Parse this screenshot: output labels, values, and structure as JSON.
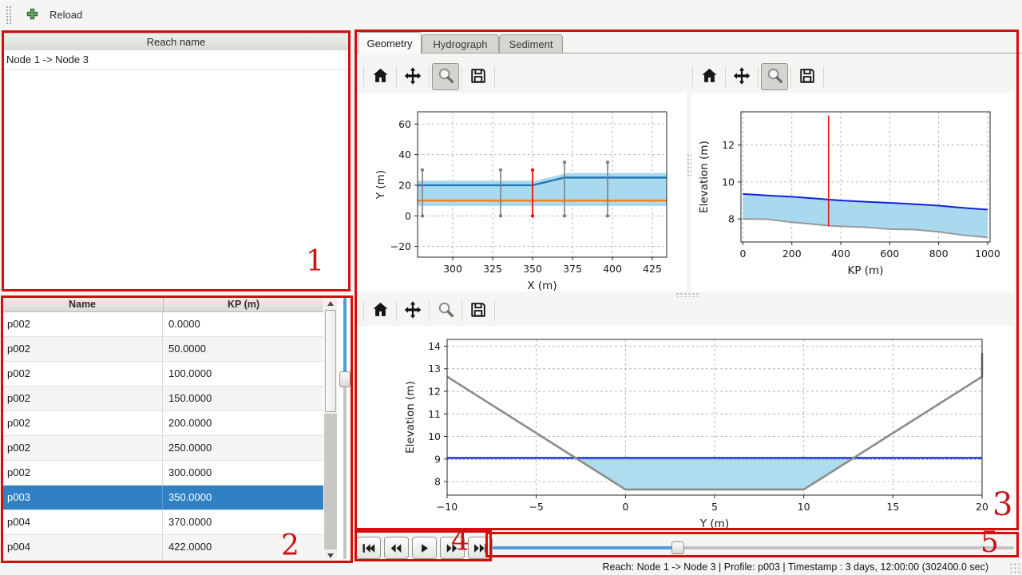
{
  "toolbar": {
    "reload_label": "Reload"
  },
  "reach_panel": {
    "header": "Reach name",
    "items": [
      "Node 1 -> Node 3"
    ]
  },
  "profile_table": {
    "columns": [
      "Name",
      "KP (m)"
    ],
    "rows": [
      {
        "name": "p002",
        "kp": "0.0000"
      },
      {
        "name": "p002",
        "kp": "50.0000"
      },
      {
        "name": "p002",
        "kp": "100.0000"
      },
      {
        "name": "p002",
        "kp": "150.0000"
      },
      {
        "name": "p002",
        "kp": "200.0000"
      },
      {
        "name": "p002",
        "kp": "250.0000"
      },
      {
        "name": "p002",
        "kp": "300.0000"
      },
      {
        "name": "p003",
        "kp": "350.0000"
      },
      {
        "name": "p004",
        "kp": "370.0000"
      },
      {
        "name": "p004",
        "kp": "422.0000"
      },
      {
        "name": "",
        "kp": ""
      }
    ],
    "selected_index": 7
  },
  "tabs": {
    "items": [
      "Geometry",
      "Hydrograph",
      "Sediment"
    ],
    "active": "Geometry"
  },
  "plot_toolbars": {
    "icons": [
      "home-icon",
      "pan-icon",
      "zoom-icon",
      "save-icon"
    ],
    "zoom_active": [
      true,
      true,
      false
    ]
  },
  "playback": {
    "buttons": [
      "skip-start",
      "step-rewind",
      "play",
      "step-forward",
      "skip-end"
    ]
  },
  "time_slider": {
    "progress_percent": 35.5
  },
  "kp_slider": {
    "progress_percent": 31
  },
  "statusbar": {
    "text": "Reach: Node 1 -> Node 3 | Profile: p003 | Timestamp : 3 days, 12:00:00 (302400.0 sec)"
  },
  "annotations": {
    "labels": [
      "1",
      "2",
      "3",
      "4",
      "5"
    ],
    "color": "#c81414"
  },
  "colors": {
    "selection_blue": "#3081c3",
    "slider_blue": "#4a9ede",
    "slider_gray": "#c6c4c1",
    "fill_lightblue": "#a8d9ef",
    "mpl_blue": "#1f77b4",
    "mpl_orange": "#ff7f0e",
    "water_blue": "#1522e0",
    "bed_gray": "#8c8c8c",
    "marker_red": "#e8100c"
  },
  "chart_data": [
    {
      "type": "line",
      "title": "",
      "xlabel": "X (m)",
      "ylabel": "Y (m)",
      "xlim": [
        278,
        434
      ],
      "ylim": [
        -27,
        68
      ],
      "xticks": [
        300,
        325,
        350,
        375,
        400,
        425
      ],
      "yticks": [
        -20,
        0,
        20,
        40,
        60
      ],
      "grid": true,
      "series": [
        {
          "name": "channel-band",
          "type": "band",
          "color": "#a8d9ef",
          "x": [
            278,
            352,
            372,
            434
          ],
          "upper": [
            23,
            23,
            28,
            28
          ],
          "lower": [
            6.5,
            6.5,
            6.5,
            6.5
          ]
        },
        {
          "name": "left-bank-line",
          "type": "line",
          "color": "#1f77b4",
          "width": 2.4,
          "x": [
            278,
            350,
            370,
            434
          ],
          "y": [
            20,
            20,
            25,
            25
          ]
        },
        {
          "name": "right-bank-line",
          "type": "line",
          "color": "#ff7f0e",
          "width": 2.4,
          "x": [
            278,
            434
          ],
          "y": [
            10,
            10
          ]
        },
        {
          "name": "cross-section-markers",
          "type": "vmarkers",
          "color": "#7f7f7f",
          "width": 1.6,
          "caps": true,
          "markers": [
            {
              "x": 281,
              "y0": 0,
              "y1": 30
            },
            {
              "x": 330,
              "y0": 0,
              "y1": 30
            },
            {
              "x": 370,
              "y0": 0,
              "y1": 35
            },
            {
              "x": 397,
              "y0": 0,
              "y1": 35
            }
          ]
        },
        {
          "name": "selected-section-marker",
          "type": "vmarkers",
          "color": "#e8100c",
          "width": 1.8,
          "caps": true,
          "markers": [
            {
              "x": 350,
              "y0": 0,
              "y1": 30
            }
          ]
        }
      ]
    },
    {
      "type": "line",
      "title": "",
      "xlabel": "KP (m)",
      "ylabel": "Elevation (m)",
      "xlim": [
        -8,
        1010
      ],
      "ylim": [
        6.75,
        13.8
      ],
      "xticks": [
        0,
        200,
        400,
        600,
        800,
        1000
      ],
      "yticks": [
        8,
        10,
        12
      ],
      "grid": true,
      "series": [
        {
          "name": "water-band",
          "type": "band",
          "color": "#a8d9ef",
          "x": [
            0,
            100,
            200,
            300,
            350,
            400,
            500,
            600,
            700,
            800,
            900,
            1000
          ],
          "upper": [
            9.35,
            9.27,
            9.2,
            9.1,
            9.05,
            9.0,
            8.93,
            8.87,
            8.8,
            8.72,
            8.6,
            8.5
          ],
          "lower": [
            8.0,
            7.98,
            7.82,
            7.7,
            7.63,
            7.6,
            7.55,
            7.45,
            7.42,
            7.3,
            7.12,
            7.0
          ]
        },
        {
          "name": "bed-line",
          "type": "line",
          "color": "#999999",
          "width": 2,
          "x": [
            0,
            100,
            200,
            300,
            350,
            400,
            500,
            600,
            700,
            800,
            900,
            1000
          ],
          "y": [
            8.0,
            7.98,
            7.82,
            7.7,
            7.63,
            7.6,
            7.55,
            7.45,
            7.42,
            7.3,
            7.12,
            7.0
          ]
        },
        {
          "name": "water-surface-line",
          "type": "line",
          "color": "#1522e0",
          "width": 2,
          "x": [
            0,
            100,
            200,
            300,
            350,
            400,
            500,
            600,
            700,
            800,
            900,
            1000
          ],
          "y": [
            9.35,
            9.27,
            9.2,
            9.1,
            9.05,
            9.0,
            8.93,
            8.87,
            8.8,
            8.72,
            8.6,
            8.5
          ]
        },
        {
          "name": "current-kp-marker",
          "type": "vmarkers",
          "color": "#e8100c",
          "width": 1.6,
          "caps": false,
          "markers": [
            {
              "x": 350,
              "y0": 7.6,
              "y1": 13.6
            }
          ]
        }
      ]
    },
    {
      "type": "line",
      "title": "",
      "xlabel": "Y (m)",
      "ylabel": "Elevation (m)",
      "xlim": [
        -10,
        20
      ],
      "ylim": [
        7.4,
        14.3
      ],
      "xticks": [
        -10,
        -5,
        0,
        5,
        10,
        15,
        20
      ],
      "yticks": [
        8,
        9,
        10,
        11,
        12,
        13,
        14
      ],
      "grid": true,
      "series": [
        {
          "name": "water-fill",
          "type": "band",
          "color": "#aedcef",
          "x": [
            -2.8,
            0,
            10,
            12.8
          ],
          "upper": [
            9.05,
            9.05,
            9.05,
            9.05
          ],
          "lower": [
            9.05,
            7.65,
            7.65,
            9.05
          ]
        },
        {
          "name": "initial-level-dashed",
          "type": "line",
          "color": "#9a9ae8",
          "width": 1,
          "dash": "2 3",
          "x": [
            -10,
            20
          ],
          "y": [
            8.98,
            8.98
          ]
        },
        {
          "name": "water-level-line",
          "type": "line",
          "color": "#1522e0",
          "width": 2.2,
          "x": [
            -10,
            20
          ],
          "y": [
            9.05,
            9.05
          ]
        },
        {
          "name": "cross-section-bed",
          "type": "line",
          "color": "#8c8c8c",
          "width": 2.6,
          "x": [
            -10,
            0,
            10,
            20,
            20
          ],
          "y": [
            12.65,
            7.65,
            7.65,
            12.65,
            13.7
          ]
        }
      ]
    }
  ]
}
